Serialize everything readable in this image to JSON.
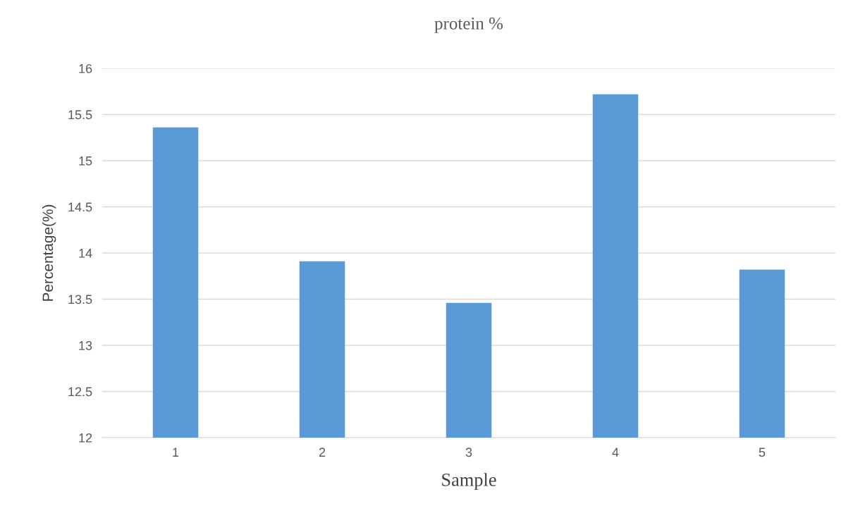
{
  "chart_data": {
    "type": "bar",
    "title": "protein %",
    "xlabel": "Sample",
    "ylabel": "Percentage(%)",
    "categories": [
      "1",
      "2",
      "3",
      "4",
      "5"
    ],
    "values": [
      15.36,
      13.91,
      13.46,
      15.72,
      13.82
    ],
    "color": "#5b9bd5",
    "ylim": [
      12,
      16
    ],
    "yticks": [
      12,
      12.5,
      13,
      13.5,
      14,
      14.5,
      15,
      15.5,
      16
    ],
    "grid": "y",
    "legend": false
  }
}
